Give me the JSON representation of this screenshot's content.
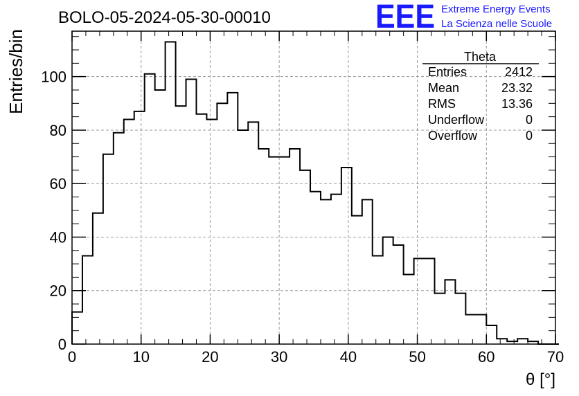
{
  "chart_data": {
    "type": "histogram",
    "title": "BOLO-05-2024-05-30-00010",
    "xlabel": "θ [°]",
    "ylabel": "Entries/bin",
    "xlim": [
      0,
      70
    ],
    "ylim": [
      0,
      117
    ],
    "x_ticks": [
      0,
      10,
      20,
      30,
      40,
      50,
      60,
      70
    ],
    "y_ticks": [
      0,
      20,
      40,
      60,
      80,
      100
    ],
    "grid": true,
    "bin_width": 1.5,
    "bin_start": 0,
    "values": [
      12,
      33,
      49,
      71,
      79,
      84,
      87,
      101,
      95,
      113,
      89,
      99,
      86,
      84,
      90,
      94,
      80,
      83,
      73,
      70,
      70,
      73,
      65,
      57,
      54,
      56,
      66,
      48,
      54,
      33,
      40,
      37,
      26,
      32,
      32,
      19,
      24,
      19,
      11,
      11,
      7,
      2,
      1,
      2,
      1,
      0,
      0
    ],
    "line_color": "#000000",
    "grid_color": "#999999",
    "stats": {
      "title": "Theta",
      "rows": [
        {
          "label": "Entries",
          "value": "2412"
        },
        {
          "label": "Mean",
          "value": "23.32"
        },
        {
          "label": "RMS",
          "value": "13.36"
        },
        {
          "label": "Underflow",
          "value": "0"
        },
        {
          "label": "Overflow",
          "value": "0"
        }
      ]
    }
  },
  "logo": {
    "text": "EEE",
    "line1": "Extreme Energy Events",
    "line2": "La Scienza nelle Scuole",
    "color": "#1a1aff"
  }
}
